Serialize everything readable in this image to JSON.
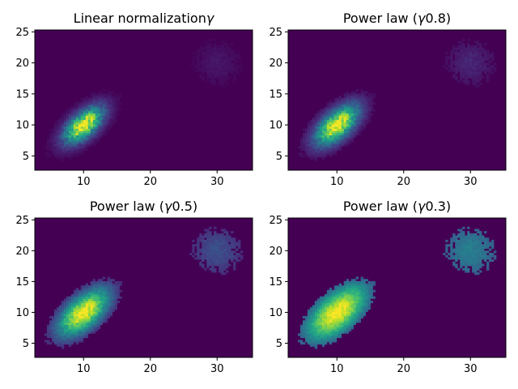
{
  "chart_data": [
    {
      "type": "heatmap",
      "title": "Linear normalization",
      "title_prefix": "Linear normalization",
      "gamma": "",
      "title_suffix": "",
      "norm_gamma": 1.0,
      "xlim": [
        2.7,
        35.3
      ],
      "ylim": [
        2.7,
        25.3
      ],
      "xticks": [
        "10",
        "20",
        "30"
      ],
      "yticks": [
        "5",
        "10",
        "15",
        "20",
        "25"
      ],
      "xlabel": "",
      "ylabel": "",
      "colormap": "viridis",
      "grid": false
    },
    {
      "type": "heatmap",
      "title": "Power law (γ = 0.8)",
      "title_prefix": "Power law (",
      "gamma": "0.8",
      "title_suffix": ")",
      "norm_gamma": 0.8,
      "xlim": [
        2.7,
        35.3
      ],
      "ylim": [
        2.7,
        25.3
      ],
      "xticks": [
        "10",
        "20",
        "30"
      ],
      "yticks": [
        "5",
        "10",
        "15",
        "20",
        "25"
      ],
      "xlabel": "",
      "ylabel": "",
      "colormap": "viridis",
      "grid": false
    },
    {
      "type": "heatmap",
      "title": "Power law (γ = 0.5)",
      "title_prefix": "Power law (",
      "gamma": "0.5",
      "title_suffix": ")",
      "norm_gamma": 0.5,
      "xlim": [
        2.7,
        35.3
      ],
      "ylim": [
        2.7,
        25.3
      ],
      "xticks": [
        "10",
        "20",
        "30"
      ],
      "yticks": [
        "5",
        "10",
        "15",
        "20",
        "25"
      ],
      "xlabel": "",
      "ylabel": "",
      "colormap": "viridis",
      "grid": false
    },
    {
      "type": "heatmap",
      "title": "Power law (γ = 0.3)",
      "title_prefix": "Power law (",
      "gamma": "0.3",
      "title_suffix": ")",
      "norm_gamma": 0.3,
      "xlim": [
        2.7,
        35.3
      ],
      "ylim": [
        2.7,
        25.3
      ],
      "xticks": [
        "10",
        "20",
        "30"
      ],
      "yticks": [
        "5",
        "10",
        "15",
        "20",
        "25"
      ],
      "xlabel": "",
      "ylabel": "",
      "colormap": "viridis",
      "grid": false
    }
  ]
}
